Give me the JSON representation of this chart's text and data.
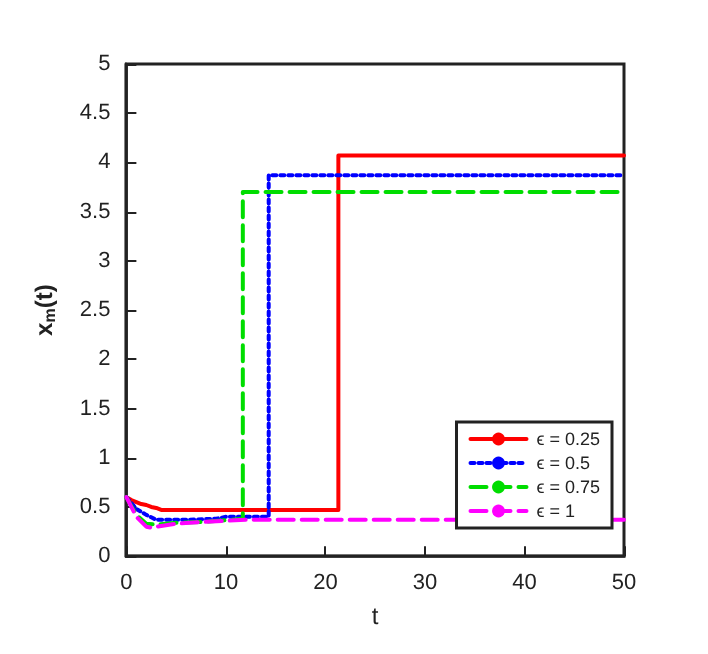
{
  "chart_data": {
    "type": "line",
    "xlabel": "t",
    "ylabel": "x$_{m}$(t)",
    "xlim": [
      0,
      50
    ],
    "xticks": [
      0,
      10,
      20,
      30,
      40,
      50
    ],
    "ylim": [
      0,
      5
    ],
    "yticks": [
      0,
      0.5,
      1,
      1.5,
      2,
      2.5,
      3,
      3.5,
      4,
      4.5,
      5
    ],
    "grid": false,
    "legend": "bottom right",
    "marker": "none",
    "series": [
      {
        "name": "ϵ = 0.25",
        "color": "#ff0000",
        "line_style": "solid",
        "x": [
          0,
          0.5,
          1,
          1.5,
          2,
          2.5,
          3,
          3.5,
          10,
          21.3,
          21.3,
          50
        ],
        "values": [
          0.6,
          0.57,
          0.55,
          0.53,
          0.52,
          0.5,
          0.49,
          0.47,
          0.47,
          0.47,
          4.07,
          4.07
        ]
      },
      {
        "name": "ϵ = 0.5",
        "color": "#0000ff",
        "line_style": "dotted",
        "x": [
          0,
          1,
          2,
          3,
          6,
          9,
          10,
          14.3,
          14.3,
          50
        ],
        "values": [
          0.6,
          0.48,
          0.42,
          0.37,
          0.37,
          0.38,
          0.4,
          0.4,
          3.87,
          3.87
        ]
      },
      {
        "name": "ϵ = 0.75",
        "color": "#00dd00",
        "line_style": "dashed",
        "x": [
          0,
          1,
          2,
          3,
          5,
          8,
          11.7,
          11.7,
          50
        ],
        "values": [
          0.6,
          0.42,
          0.33,
          0.32,
          0.34,
          0.35,
          0.38,
          3.7,
          3.7
        ]
      },
      {
        "name": "ϵ = 1",
        "color": "#ff00ff",
        "line_style": "dashed",
        "x": [
          0,
          1,
          2,
          2.5,
          3,
          5,
          8,
          12,
          50
        ],
        "values": [
          0.6,
          0.4,
          0.3,
          0.29,
          0.3,
          0.33,
          0.35,
          0.37,
          0.37
        ]
      }
    ]
  }
}
